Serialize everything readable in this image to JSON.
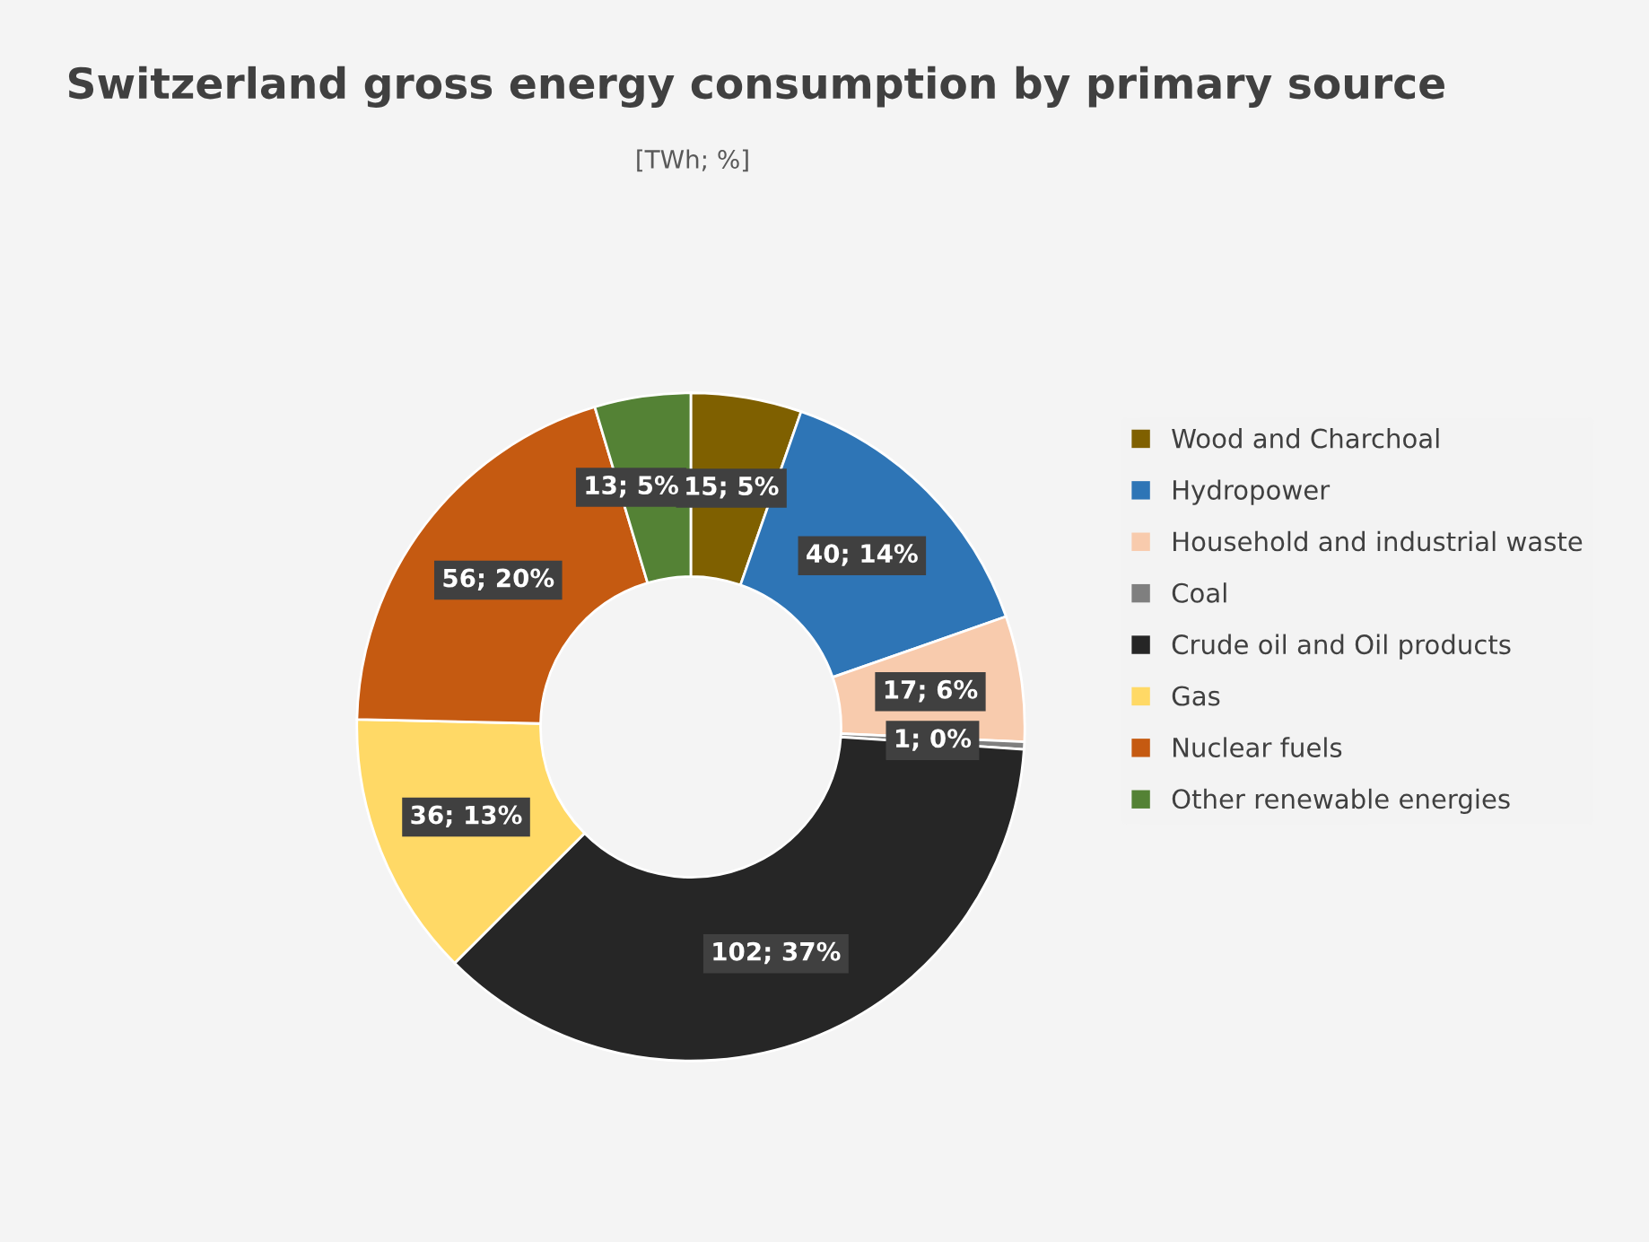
{
  "chart_data": {
    "type": "donut",
    "title": "Switzerland gross energy consumption by primary source",
    "subtitle": "[TWh; %]",
    "categories": [
      "Wood and Charchoal",
      "Hydropower",
      "Household and industrial waste",
      "Coal",
      "Crude oil and Oil products",
      "Gas",
      "Nuclear fuels",
      "Other renewable energies"
    ],
    "values": [
      15,
      40,
      17,
      1,
      102,
      36,
      56,
      13
    ],
    "colors": [
      "#7f6000",
      "#2e75b6",
      "#f8cbad",
      "#7f7f7f",
      "#262626",
      "#ffd966",
      "#c55a11",
      "#548235"
    ],
    "value_labels": [
      "15; 5%",
      "40; 14%",
      "17; 6%",
      "1; 0%",
      "102; 37%",
      "36; 13%",
      "56; 20%",
      "13; 5%"
    ],
    "legend": "right"
  }
}
